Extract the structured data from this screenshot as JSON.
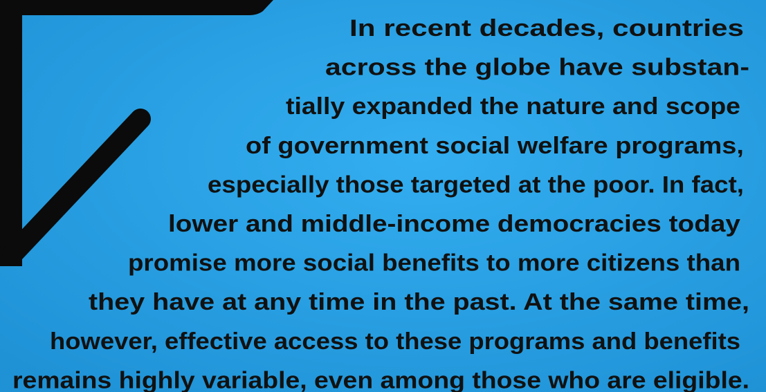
{
  "text": {
    "lines": [
      "In recent decades, countries",
      "across the globe have substan-",
      "tially expanded the nature and scope",
      "of government social welfare programs,",
      "especially those targeted at the poor. In fact,",
      "lower and middle-income democracies today",
      "promise more social benefits to more citizens than",
      "they have at any time in the past. At the same time,",
      "however, effective access to these programs and benefits",
      "remains highly variable, even among those who are eligible."
    ]
  }
}
